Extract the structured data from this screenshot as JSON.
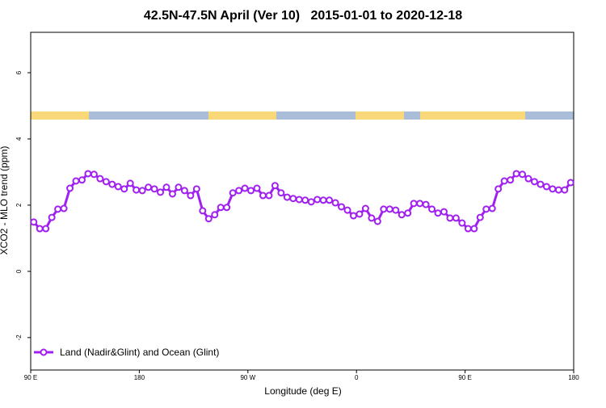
{
  "chart_data": {
    "type": "line",
    "title": "42.5N-47.5N April (Ver 10)   2015-01-01 to 2020-12-18",
    "xlabel": "Longitude (deg E)",
    "ylabel": "XCO2 - MLO trend (ppm)",
    "xlim": [
      90,
      540
    ],
    "ylim": [
      -2.98,
      7.22
    ],
    "xticks": [
      {
        "value": 90,
        "label": "90 E"
      },
      180,
      {
        "value": 270,
        "label": "90 W"
      },
      {
        "value": 360,
        "label": "0"
      },
      {
        "value": 450,
        "label": "90 E"
      },
      {
        "value": 540,
        "label": "180"
      }
    ],
    "yticks": [
      -2,
      0,
      2,
      4,
      6
    ],
    "legend": "bottom-left",
    "series": [
      {
        "name": "Land (Nadir&Glint) and Ocean (Glint)",
        "color": "#a020f0",
        "x": [
          92.5,
          97.5,
          102.5,
          107.5,
          112.5,
          117.5,
          122.5,
          127.5,
          132.5,
          137.5,
          142.5,
          147.5,
          152.5,
          157.5,
          162.5,
          167.5,
          172.5,
          177.5,
          182.5,
          187.5,
          192.5,
          197.5,
          202.5,
          207.5,
          212.5,
          217.5,
          222.5,
          227.5,
          232.5,
          237.5,
          242.5,
          247.5,
          252.5,
          257.5,
          262.5,
          267.5,
          272.5,
          277.5,
          282.5,
          287.5,
          292.5,
          297.5,
          302.5,
          307.5,
          312.5,
          317.5,
          322.5,
          327.5,
          332.5,
          337.5,
          342.5,
          347.5,
          352.5,
          357.5,
          362.5,
          367.5,
          372.5,
          377.5,
          382.5,
          387.5,
          392.5,
          397.5,
          402.5,
          407.5,
          412.5,
          417.5,
          422.5,
          427.5,
          432.5,
          437.5,
          442.5,
          447.5,
          452.5,
          457.5,
          462.5,
          467.5,
          472.5,
          477.5,
          482.5,
          487.5,
          492.5,
          497.5,
          502.5,
          507.5,
          512.5,
          517.5,
          522.5,
          527.5,
          532.5,
          537.5
        ],
        "values": [
          1.49,
          1.29,
          1.29,
          1.63,
          1.88,
          1.9,
          2.51,
          2.73,
          2.76,
          2.95,
          2.93,
          2.8,
          2.71,
          2.63,
          2.56,
          2.49,
          2.66,
          2.46,
          2.44,
          2.54,
          2.49,
          2.39,
          2.54,
          2.34,
          2.54,
          2.44,
          2.29,
          2.49,
          1.83,
          1.59,
          1.71,
          1.93,
          1.93,
          2.37,
          2.44,
          2.51,
          2.44,
          2.51,
          2.29,
          2.29,
          2.59,
          2.37,
          2.24,
          2.2,
          2.17,
          2.15,
          2.1,
          2.17,
          2.15,
          2.15,
          2.07,
          1.95,
          1.85,
          1.68,
          1.73,
          1.9,
          1.61,
          1.51,
          1.88,
          1.88,
          1.85,
          1.71,
          1.76,
          2.05,
          2.05,
          2.02,
          1.88,
          1.76,
          1.8,
          1.61,
          1.61,
          1.46,
          1.29,
          1.29,
          1.63,
          1.88,
          1.9,
          2.49,
          2.73,
          2.76,
          2.95,
          2.93,
          2.8,
          2.71,
          2.63,
          2.56,
          2.49,
          2.46,
          2.46,
          2.68
        ]
      }
    ]
  }
}
